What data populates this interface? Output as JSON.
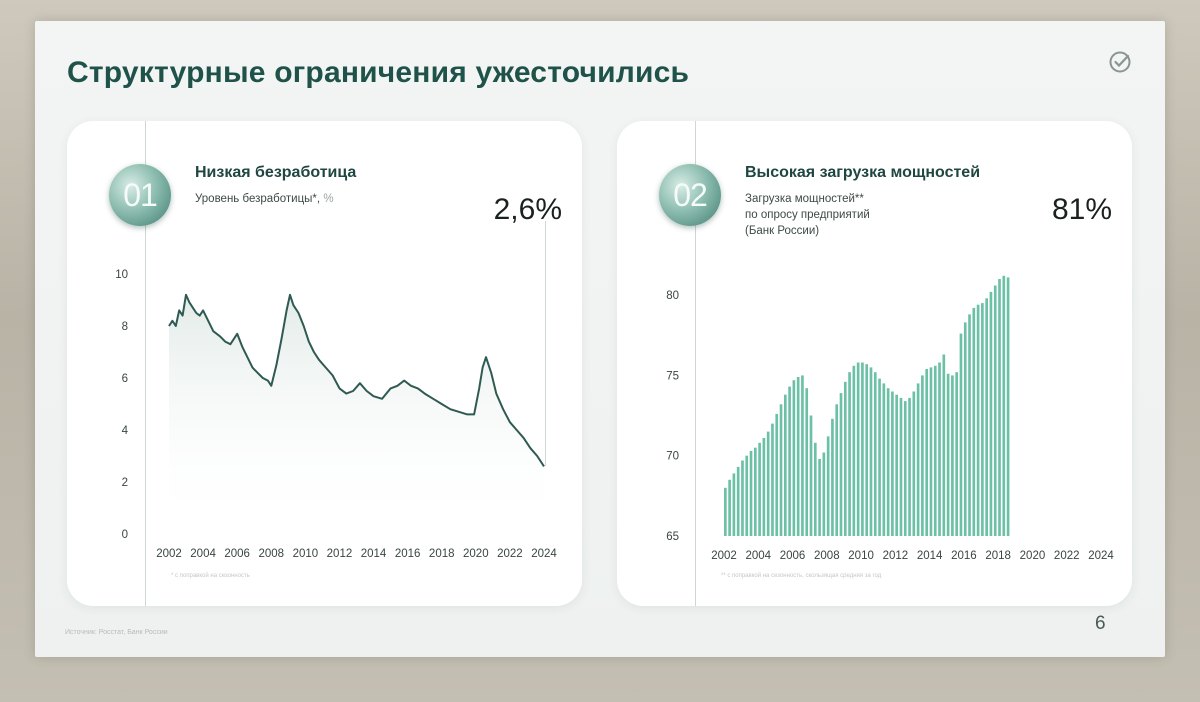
{
  "slide": {
    "title": "Структурные ограничения ужесточились",
    "page_number": "6",
    "source_note": "Источник: Росстат, Банк России"
  },
  "cards": [
    {
      "number": "01",
      "title": "Низкая безработица",
      "subtitle": "Уровень безработицы*,",
      "unit": "%",
      "value": "2,6%",
      "footnote": "* с поправкой на сезонность"
    },
    {
      "number": "02",
      "title": "Высокая загрузка мощностей",
      "subtitle_lines": [
        "Загрузка мощностей**",
        "по опросу предприятий",
        "(Банк России)"
      ],
      "value": "81%",
      "footnote": "** с поправкой на сезонность, скользящая средняя за год"
    }
  ],
  "colors": {
    "title": "#1f5249",
    "line": "#2f5a52",
    "bars": "#6cc0a5",
    "badge": "#5e9b8c"
  },
  "icons": {
    "logo": "check-circle-icon"
  },
  "chart_data": [
    {
      "type": "area",
      "xlim": [
        2002,
        2024.3
      ],
      "ylim": [
        0,
        10
      ],
      "xticks": [
        "2002",
        "2004",
        "2006",
        "2008",
        "2010",
        "2012",
        "2014",
        "2016",
        "2018",
        "2020",
        "2022",
        "2024"
      ],
      "yticks": [
        "0",
        "2",
        "4",
        "6",
        "8",
        "10"
      ],
      "grid": false,
      "x": [
        2002.0,
        2002.2,
        2002.4,
        2002.6,
        2002.8,
        2003.0,
        2003.2,
        2003.4,
        2003.6,
        2003.8,
        2004.0,
        2004.3,
        2004.6,
        2005.0,
        2005.3,
        2005.6,
        2006.0,
        2006.3,
        2006.6,
        2006.9,
        2007.2,
        2007.5,
        2007.8,
        2008.0,
        2008.3,
        2008.6,
        2008.9,
        2009.1,
        2009.3,
        2009.6,
        2009.9,
        2010.2,
        2010.5,
        2010.8,
        2011.2,
        2011.6,
        2012.0,
        2012.4,
        2012.8,
        2013.2,
        2013.6,
        2014.0,
        2014.5,
        2015.0,
        2015.4,
        2015.8,
        2016.2,
        2016.6,
        2017.0,
        2017.5,
        2018.0,
        2018.5,
        2019.0,
        2019.5,
        2019.9,
        2020.2,
        2020.4,
        2020.6,
        2020.9,
        2021.2,
        2021.6,
        2022.0,
        2022.4,
        2022.8,
        2023.2,
        2023.6,
        2024.0
      ],
      "values": [
        8.0,
        8.2,
        8.0,
        8.6,
        8.4,
        9.2,
        8.9,
        8.7,
        8.5,
        8.4,
        8.6,
        8.2,
        7.8,
        7.6,
        7.4,
        7.3,
        7.7,
        7.2,
        6.8,
        6.4,
        6.2,
        6.0,
        5.9,
        5.7,
        6.5,
        7.5,
        8.6,
        9.2,
        8.8,
        8.5,
        8.0,
        7.4,
        7.0,
        6.7,
        6.4,
        6.1,
        5.6,
        5.4,
        5.5,
        5.8,
        5.5,
        5.3,
        5.2,
        5.6,
        5.7,
        5.9,
        5.7,
        5.6,
        5.4,
        5.2,
        5.0,
        4.8,
        4.7,
        4.6,
        4.6,
        5.6,
        6.4,
        6.8,
        6.2,
        5.4,
        4.8,
        4.3,
        4.0,
        3.7,
        3.3,
        3.0,
        2.6
      ]
    },
    {
      "type": "bar",
      "xlim": [
        2002,
        2024.3
      ],
      "ylim": [
        65,
        81.5
      ],
      "xticks": [
        "2002",
        "2004",
        "2006",
        "2008",
        "2010",
        "2012",
        "2014",
        "2016",
        "2018",
        "2020",
        "2022",
        "2024"
      ],
      "yticks": [
        "65",
        "70",
        "75",
        "80"
      ],
      "grid": false,
      "x_start": 2002.0,
      "x_step": 0.25,
      "values": [
        68.0,
        68.5,
        68.9,
        69.3,
        69.7,
        70.0,
        70.3,
        70.5,
        70.8,
        71.1,
        71.5,
        72.0,
        72.6,
        73.2,
        73.8,
        74.3,
        74.7,
        74.9,
        75.0,
        74.2,
        72.5,
        70.8,
        69.8,
        70.2,
        71.2,
        72.3,
        73.2,
        73.9,
        74.6,
        75.2,
        75.6,
        75.8,
        75.8,
        75.7,
        75.5,
        75.2,
        74.8,
        74.5,
        74.2,
        74.0,
        73.8,
        73.6,
        73.4,
        73.6,
        74.0,
        74.5,
        75.0,
        75.4,
        75.5,
        75.6,
        75.8,
        76.3,
        75.1,
        75.0,
        75.2,
        77.6,
        78.3,
        78.8,
        79.2,
        79.4,
        79.5,
        79.8,
        80.2,
        80.6,
        81.0,
        81.2,
        81.1
      ]
    }
  ]
}
